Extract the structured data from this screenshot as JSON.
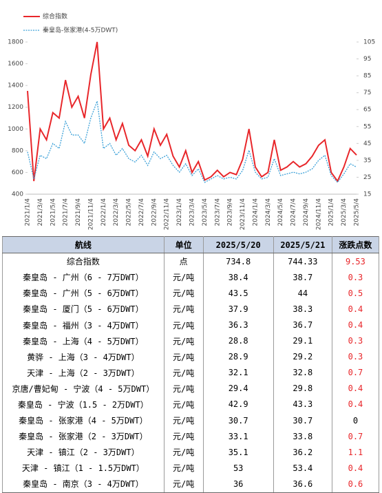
{
  "chart_data": {
    "type": "line",
    "x": [
      "2021/1/4",
      null,
      "2021/3/4",
      null,
      "2021/5/4",
      null,
      "2021/7/4",
      null,
      "2021/9/4",
      null,
      "2021/11/4",
      null,
      "2022/1/4",
      null,
      "2022/3/4",
      null,
      "2022/5/4",
      null,
      "2022/7/4",
      null,
      "2022/9/4",
      null,
      "2022/11/4",
      null,
      "2023/1/4",
      null,
      "2023/3/4",
      null,
      "2023/5/4",
      null,
      "2023/7/4",
      null,
      "2023/9/4",
      null,
      "2023/11/4",
      null,
      "2024/1/4",
      null,
      "2024/3/4",
      null,
      "2024/5/4",
      null,
      "2024/7/4",
      null,
      "2024/9/4",
      null,
      "2024/11/4",
      null,
      "2025/1/4",
      null,
      "2025/3/4",
      null,
      "2025/5/4"
    ],
    "series": [
      {
        "name": "综合指数",
        "color": "#e8262a",
        "values": [
          1350,
          520,
          1000,
          900,
          1150,
          1100,
          1450,
          1200,
          1300,
          1100,
          1500,
          1800,
          1000,
          1100,
          900,
          1050,
          850,
          800,
          900,
          750,
          1000,
          850,
          950,
          750,
          650,
          800,
          600,
          700,
          530,
          560,
          620,
          560,
          600,
          580,
          720,
          1000,
          650,
          560,
          600,
          900,
          620,
          650,
          700,
          650,
          680,
          750,
          850,
          900,
          600,
          520,
          650,
          820,
          760
        ]
      },
      {
        "name": "秦皇岛-张家港(4-5万DWT)",
        "color": "#3aa0d8",
        "axis": "y2",
        "values": [
          40,
          24,
          38,
          36,
          45,
          42,
          58,
          50,
          50,
          45,
          60,
          70,
          42,
          45,
          38,
          42,
          36,
          34,
          38,
          32,
          40,
          36,
          38,
          32,
          28,
          33,
          26,
          30,
          22,
          24,
          26,
          24,
          25,
          24,
          29,
          41,
          28,
          24,
          25,
          36,
          26,
          27,
          28,
          27,
          28,
          30,
          35,
          38,
          26,
          22,
          27,
          33,
          31
        ]
      }
    ],
    "ylim": [
      400,
      1800
    ],
    "yticks": [
      400,
      600,
      800,
      1000,
      1200,
      1400,
      1600,
      1800
    ],
    "y2lim": [
      15,
      105
    ],
    "y2ticks": [
      15,
      25,
      35,
      45,
      55,
      65,
      75,
      85,
      95,
      105
    ]
  },
  "table": {
    "header": [
      "航线",
      "单位",
      "2025/5/20",
      "2025/5/21",
      "涨跌点数"
    ],
    "rows": [
      [
        "综合指数",
        "点",
        734.8,
        744.33,
        9.53
      ],
      [
        "秦皇岛 - 广州（6 - 7万DWT）",
        "元/吨",
        38.4,
        38.7,
        0.3
      ],
      [
        "秦皇岛 - 广州（5 - 6万DWT）",
        "元/吨",
        43.5,
        44,
        0.5
      ],
      [
        "秦皇岛 - 厦门（5 - 6万DWT）",
        "元/吨",
        37.9,
        38.3,
        0.4
      ],
      [
        "秦皇岛 - 福州（3 - 4万DWT）",
        "元/吨",
        36.3,
        36.7,
        0.4
      ],
      [
        "秦皇岛 - 上海（4 - 5万DWT）",
        "元/吨",
        28.8,
        29.1,
        0.3
      ],
      [
        "黄骅 - 上海（3 - 4万DWT）",
        "元/吨",
        28.9,
        29.2,
        0.3
      ],
      [
        "天津 - 上海（2 - 3万DWT）",
        "元/吨",
        32.1,
        32.8,
        0.7
      ],
      [
        "京唐/曹妃甸 - 宁波（4 - 5万DWT）",
        "元/吨",
        29.4,
        29.8,
        0.4
      ],
      [
        "秦皇岛 - 宁波（1.5 - 2万DWT）",
        "元/吨",
        42.9,
        43.3,
        0.4
      ],
      [
        "秦皇岛 - 张家港（4 - 5万DWT）",
        "元/吨",
        30.7,
        30.7,
        0
      ],
      [
        "秦皇岛 - 张家港（2 - 3万DWT）",
        "元/吨",
        33.1,
        33.8,
        0.7
      ],
      [
        "天津 - 镇江（2 - 3万DWT）",
        "元/吨",
        35.1,
        36.2,
        1.1
      ],
      [
        "天津 - 镇江（1 - 1.5万DWT）",
        "元/吨",
        53,
        53.4,
        0.4
      ],
      [
        "秦皇岛 - 南京（3 - 4万DWT）",
        "元/吨",
        36,
        36.6,
        0.6
      ]
    ]
  }
}
